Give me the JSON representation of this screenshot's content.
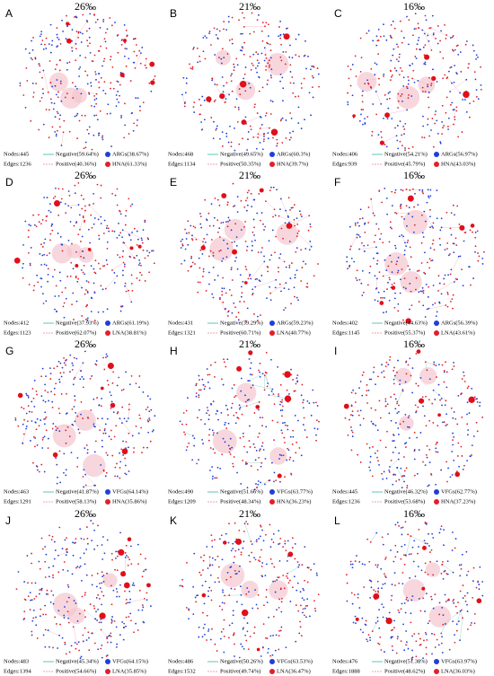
{
  "panels": [
    {
      "letter": "A",
      "title": "26‰",
      "nodes": "Nodes:445",
      "edges": "Edges:1236",
      "negative": "Negative(59.64%)",
      "positive": "Positive(40.36%)",
      "genes": "ARGs(38.67%)",
      "bacteria": "HNA(61.33%)"
    },
    {
      "letter": "B",
      "title": "21‰",
      "nodes": "Nodes:468",
      "edges": "Edges:1134",
      "negative": "Negative(49.65%)",
      "positive": "Positive(50.35%)",
      "genes": "ARGs(60.3%)",
      "bacteria": "HNA(39.7%)"
    },
    {
      "letter": "C",
      "title": "16‰",
      "nodes": "Nodes:406",
      "edges": "Edges:939",
      "negative": "Negative(54.21%)",
      "positive": "Positive(45.79%)",
      "genes": "ARGs(56.97%)",
      "bacteria": "HNA(43.03%)"
    },
    {
      "letter": "D",
      "title": "26‰",
      "nodes": "Nodes:412",
      "edges": "Edges:1123",
      "negative": "Negative(37.93%)",
      "positive": "Positive(62.07%)",
      "genes": "ARGs(61.19%)",
      "bacteria": "LNA(38.81%)"
    },
    {
      "letter": "E",
      "title": "21‰",
      "nodes": "Nodes:431",
      "edges": "Edges:1321",
      "negative": "Negative(39.29%)",
      "positive": "Positive(60.71%)",
      "genes": "ARGs(59.23%)",
      "bacteria": "LNA(40.77%)"
    },
    {
      "letter": "F",
      "title": "16‰",
      "nodes": "Nodes:402",
      "edges": "Edges:1145",
      "negative": "Negative(44.63%)",
      "positive": "Positive(55.37%)",
      "genes": "ARGs(56.39%)",
      "bacteria": "LNA(43.61%)"
    },
    {
      "letter": "G",
      "title": "26‰",
      "nodes": "Nodes:463",
      "edges": "Edges:1291",
      "negative": "Negative(41.87%)",
      "positive": "Positive(58.13%)",
      "genes": "VFGs(64.14%)",
      "bacteria": "HNA(35.86%)"
    },
    {
      "letter": "H",
      "title": "21‰",
      "nodes": "Nodes:490",
      "edges": "Edges:1209",
      "negative": "Negative(51.66%)",
      "positive": "Positive(48.34%)",
      "genes": "VFGs(63.77%)",
      "bacteria": "HNA(36.23%)"
    },
    {
      "letter": "I",
      "title": "16‰",
      "nodes": "Nodes:445",
      "edges": "Edges:1236",
      "negative": "Negative(46.32%)",
      "positive": "Positive(53.68%)",
      "genes": "VFGs(62.77%)",
      "bacteria": "HNA(37.23%)"
    },
    {
      "letter": "J",
      "title": "26‰",
      "nodes": "Nodes:483",
      "edges": "Edges:1394",
      "negative": "Negative(45.34%)",
      "positive": "Positive(54.66%)",
      "genes": "VFGs(64.15%)",
      "bacteria": "LNA(35.85%)"
    },
    {
      "letter": "K",
      "title": "21‰",
      "nodes": "Nodes:486",
      "edges": "Edges:1532",
      "negative": "Negative(50.26%)",
      "positive": "Positive(49.74%)",
      "genes": "VFGs(63.53%)",
      "bacteria": "LNA(36.47%)"
    },
    {
      "letter": "L",
      "title": "16‰",
      "nodes": "Nodes:476",
      "edges": "Edges:1888",
      "negative": "Negative(51.38%)",
      "positive": "Positive(48.62%)",
      "genes": "VFGs(63.97%)",
      "bacteria": "LNA(36.03%)"
    }
  ]
}
